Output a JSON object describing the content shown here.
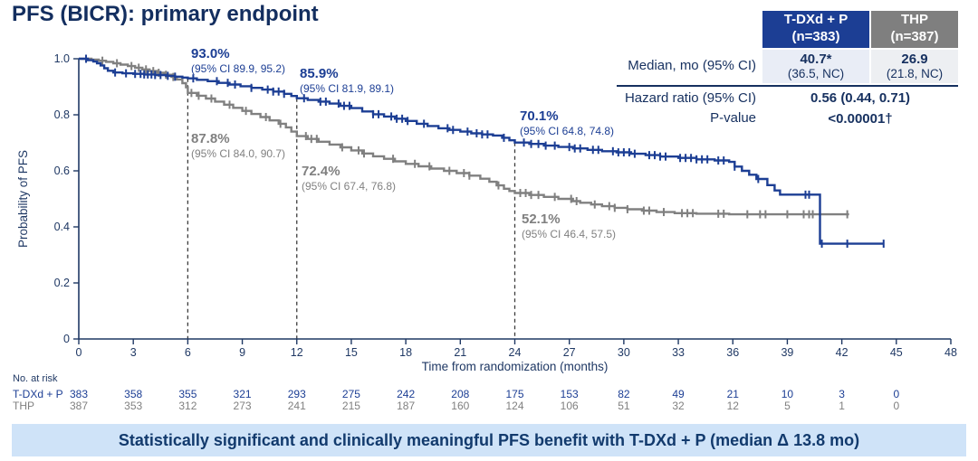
{
  "title": "PFS (BICR): primary endpoint",
  "stats_table": {
    "columns": [
      {
        "line1": "T-DXd + P",
        "line2": "(n=383)"
      },
      {
        "line1": "THP",
        "line2": "(n=387)"
      }
    ],
    "median": {
      "label": "Median, mo (95% CI)",
      "col1_value": "40.7*",
      "col1_ci": "(36.5, NC)",
      "col2_value": "26.9",
      "col2_ci": "(21.8, NC)"
    },
    "hazard": {
      "label": "Hazard ratio (95% CI)",
      "value": "0.56 (0.44, 0.71)"
    },
    "pvalue": {
      "label": "P-value",
      "value": "<0.00001†"
    }
  },
  "chart_data": {
    "type": "line",
    "subtype": "kaplan-meier-step",
    "title": "",
    "xlabel": "Time from randomization (months)",
    "ylabel": "Probability of PFS",
    "xlim": [
      0,
      48
    ],
    "ylim": [
      0,
      1.0
    ],
    "grid": false,
    "xticks": [
      "0",
      "3",
      "6",
      "9",
      "12",
      "15",
      "18",
      "21",
      "24",
      "27",
      "30",
      "33",
      "36",
      "39",
      "42",
      "45",
      "48"
    ],
    "xtick_values": [
      0,
      3,
      6,
      9,
      12,
      15,
      18,
      21,
      24,
      27,
      30,
      33,
      36,
      39,
      42,
      45,
      48
    ],
    "yticks": [
      "0",
      "0.2",
      "0.4",
      "0.6",
      "0.8",
      "1.0"
    ],
    "ytick_values": [
      0,
      0.2,
      0.4,
      0.6,
      0.8,
      1.0
    ],
    "dashed_vlines_months": [
      6,
      12,
      24
    ],
    "series": [
      {
        "name": "T-DXd + P",
        "color": "#1c3e94",
        "end_month": 44.3,
        "points": [
          [
            0,
            1.0
          ],
          [
            0.5,
            0.995
          ],
          [
            0.8,
            0.99
          ],
          [
            1.0,
            0.984
          ],
          [
            1.2,
            0.976
          ],
          [
            1.4,
            0.966
          ],
          [
            1.6,
            0.957
          ],
          [
            1.9,
            0.951
          ],
          [
            2.4,
            0.948
          ],
          [
            3.0,
            0.946
          ],
          [
            3.6,
            0.944
          ],
          [
            4.2,
            0.942
          ],
          [
            4.8,
            0.939
          ],
          [
            5.3,
            0.936
          ],
          [
            5.7,
            0.933
          ],
          [
            6.0,
            0.93
          ],
          [
            6.5,
            0.925
          ],
          [
            7.1,
            0.92
          ],
          [
            7.7,
            0.914
          ],
          [
            8.3,
            0.908
          ],
          [
            8.9,
            0.902
          ],
          [
            9.5,
            0.896
          ],
          [
            10.1,
            0.89
          ],
          [
            10.7,
            0.883
          ],
          [
            11.3,
            0.875
          ],
          [
            11.7,
            0.867
          ],
          [
            12.0,
            0.859
          ],
          [
            12.6,
            0.853
          ],
          [
            13.2,
            0.847
          ],
          [
            13.8,
            0.84
          ],
          [
            14.4,
            0.832
          ],
          [
            15.0,
            0.824
          ],
          [
            15.6,
            0.812
          ],
          [
            16.2,
            0.802
          ],
          [
            16.8,
            0.794
          ],
          [
            17.4,
            0.786
          ],
          [
            18.0,
            0.778
          ],
          [
            18.6,
            0.768
          ],
          [
            19.2,
            0.76
          ],
          [
            19.8,
            0.752
          ],
          [
            20.4,
            0.746
          ],
          [
            21.0,
            0.74
          ],
          [
            21.6,
            0.734
          ],
          [
            22.2,
            0.73
          ],
          [
            22.8,
            0.726
          ],
          [
            23.3,
            0.718
          ],
          [
            23.7,
            0.709
          ],
          [
            24.0,
            0.701
          ],
          [
            24.8,
            0.696
          ],
          [
            25.6,
            0.69
          ],
          [
            26.4,
            0.685
          ],
          [
            27.2,
            0.68
          ],
          [
            28.0,
            0.675
          ],
          [
            28.8,
            0.67
          ],
          [
            29.6,
            0.666
          ],
          [
            30.4,
            0.661
          ],
          [
            31.2,
            0.656
          ],
          [
            32.0,
            0.651
          ],
          [
            33.0,
            0.646
          ],
          [
            34.0,
            0.641
          ],
          [
            35.0,
            0.637
          ],
          [
            35.8,
            0.632
          ],
          [
            36.1,
            0.615
          ],
          [
            36.5,
            0.6
          ],
          [
            36.9,
            0.586
          ],
          [
            37.3,
            0.571
          ],
          [
            37.9,
            0.549
          ],
          [
            38.3,
            0.53
          ],
          [
            38.6,
            0.515
          ],
          [
            40.8,
            0.34
          ]
        ],
        "censor_ticks": [
          0.4,
          2.0,
          2.6,
          3.1,
          3.4,
          3.6,
          3.8,
          4.0,
          4.2,
          4.5,
          4.9,
          5.3,
          6.3,
          7.6,
          8.2,
          8.6,
          9.5,
          10.4,
          10.7,
          11.0,
          11.3,
          12.4,
          13.3,
          13.6,
          14.3,
          14.6,
          14.9,
          16.2,
          16.5,
          17.2,
          17.5,
          17.8,
          18.1,
          19.0,
          20.3,
          20.6,
          21.4,
          21.9,
          22.2,
          22.5,
          23.4,
          24.5,
          24.9,
          25.3,
          25.7,
          26.2,
          27.0,
          27.3,
          27.6,
          28.3,
          28.6,
          29.4,
          29.7,
          30.0,
          30.3,
          30.6,
          31.4,
          31.7,
          32.0,
          32.3,
          33.1,
          33.4,
          33.7,
          34.0,
          34.3,
          34.6,
          35.2,
          35.5,
          36.1,
          37.4,
          40.0,
          40.2,
          40.9,
          42.3,
          44.3
        ]
      },
      {
        "name": "THP",
        "color": "#808080",
        "end_month": 42.4,
        "points": [
          [
            0,
            1.0
          ],
          [
            0.7,
            0.997
          ],
          [
            1.1,
            0.993
          ],
          [
            1.5,
            0.989
          ],
          [
            1.9,
            0.984
          ],
          [
            2.3,
            0.979
          ],
          [
            2.7,
            0.974
          ],
          [
            3.1,
            0.968
          ],
          [
            3.5,
            0.962
          ],
          [
            3.9,
            0.956
          ],
          [
            4.3,
            0.95
          ],
          [
            4.7,
            0.943
          ],
          [
            5.1,
            0.935
          ],
          [
            5.4,
            0.926
          ],
          [
            5.7,
            0.913
          ],
          [
            5.9,
            0.898
          ],
          [
            6.0,
            0.878
          ],
          [
            6.5,
            0.868
          ],
          [
            7.0,
            0.858
          ],
          [
            7.5,
            0.847
          ],
          [
            8.0,
            0.836
          ],
          [
            8.5,
            0.825
          ],
          [
            9.0,
            0.814
          ],
          [
            9.5,
            0.803
          ],
          [
            10.0,
            0.792
          ],
          [
            10.5,
            0.78
          ],
          [
            11.0,
            0.768
          ],
          [
            11.4,
            0.755
          ],
          [
            11.7,
            0.74
          ],
          [
            12.0,
            0.724
          ],
          [
            12.6,
            0.714
          ],
          [
            13.2,
            0.704
          ],
          [
            13.8,
            0.694
          ],
          [
            14.4,
            0.684
          ],
          [
            15.0,
            0.673
          ],
          [
            15.6,
            0.662
          ],
          [
            16.2,
            0.652
          ],
          [
            16.8,
            0.643
          ],
          [
            17.4,
            0.634
          ],
          [
            18.0,
            0.625
          ],
          [
            18.7,
            0.616
          ],
          [
            19.4,
            0.608
          ],
          [
            20.1,
            0.6
          ],
          [
            20.8,
            0.592
          ],
          [
            21.5,
            0.583
          ],
          [
            22.1,
            0.572
          ],
          [
            22.6,
            0.561
          ],
          [
            23.0,
            0.548
          ],
          [
            23.4,
            0.536
          ],
          [
            23.7,
            0.528
          ],
          [
            24.0,
            0.521
          ],
          [
            24.8,
            0.514
          ],
          [
            25.6,
            0.507
          ],
          [
            26.4,
            0.5
          ],
          [
            27.2,
            0.492
          ],
          [
            27.6,
            0.486
          ],
          [
            28.2,
            0.48
          ],
          [
            28.8,
            0.474
          ],
          [
            29.5,
            0.468
          ],
          [
            30.2,
            0.463
          ],
          [
            31.0,
            0.458
          ],
          [
            31.8,
            0.453
          ],
          [
            32.8,
            0.449
          ],
          [
            34.0,
            0.447
          ],
          [
            35.8,
            0.445
          ]
        ],
        "censor_ticks": [
          1.3,
          2.1,
          2.9,
          3.3,
          3.7,
          4.1,
          4.4,
          4.8,
          5.2,
          6.2,
          6.6,
          7.3,
          8.3,
          9.2,
          10.3,
          11.1,
          12.5,
          12.8,
          13.1,
          14.5,
          15.4,
          15.7,
          17.3,
          18.5,
          19.3,
          20.4,
          21.2,
          21.5,
          23.1,
          24.3,
          24.6,
          24.9,
          25.3,
          26.2,
          27.1,
          27.4,
          28.4,
          29.2,
          29.5,
          30.2,
          31.1,
          31.4,
          32.2,
          33.2,
          33.5,
          33.8,
          35.2,
          35.5,
          36.8,
          37.5,
          37.8,
          39.0,
          39.9,
          40.2,
          40.4,
          42.3
        ]
      }
    ],
    "landmarks": [
      {
        "month": 6,
        "series": 0,
        "pct": "93.0%",
        "ci": "(95% CI 89.9, 95.2)"
      },
      {
        "month": 12,
        "series": 0,
        "pct": "85.9%",
        "ci": "(95% CI 81.9, 89.1)"
      },
      {
        "month": 24,
        "series": 0,
        "pct": "70.1%",
        "ci": "(95% CI 64.8, 74.8)"
      },
      {
        "month": 6,
        "series": 1,
        "pct": "87.8%",
        "ci": "(95% CI 84.0, 90.7)"
      },
      {
        "month": 12,
        "series": 1,
        "pct": "72.4%",
        "ci": "(95% CI 67.4, 76.8)"
      },
      {
        "month": 24,
        "series": 1,
        "pct": "52.1%",
        "ci": "(95% CI 46.4, 57.5)"
      }
    ]
  },
  "at_risk": {
    "label": "No. at risk",
    "times": [
      0,
      3,
      6,
      9,
      12,
      15,
      18,
      21,
      24,
      27,
      30,
      33,
      36,
      39,
      42,
      45
    ],
    "rows": [
      {
        "name": "T-DXd + P",
        "color": "#1c3e94",
        "values": [
          "383",
          "358",
          "355",
          "321",
          "293",
          "275",
          "242",
          "208",
          "175",
          "153",
          "82",
          "49",
          "21",
          "10",
          "3",
          "0"
        ]
      },
      {
        "name": "THP",
        "color": "#808080",
        "values": [
          "387",
          "353",
          "312",
          "273",
          "241",
          "215",
          "187",
          "160",
          "124",
          "106",
          "51",
          "32",
          "12",
          "5",
          "1",
          "0"
        ]
      }
    ]
  },
  "banner": {
    "text": "Statistically significant and clinically meaningful PFS benefit with T-DXd + P (median Δ 13.8 mo)"
  },
  "colors": {
    "primary_blue": "#1c3e94",
    "thp_gray": "#808080",
    "navy_text": "#16305f",
    "axis_navy": "#1f3864",
    "banner_bg": "#cfe3f8",
    "median_cell_blue": "#e9edf6",
    "median_cell_gray": "#edeff2"
  }
}
